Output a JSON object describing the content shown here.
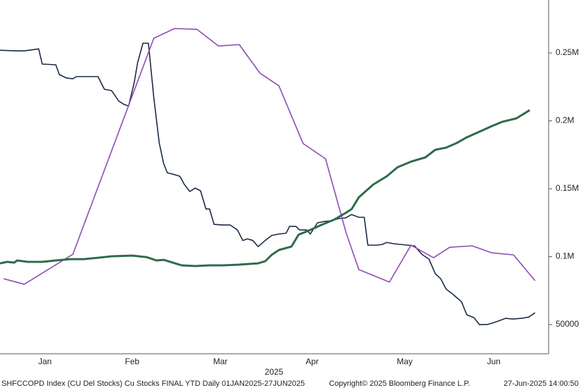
{
  "chart_data": {
    "type": "line",
    "x_axis_label": "2025",
    "footer": [
      "SHFCCOPD Index (CU Del Stocks) Cu Stocks FINAL YTD  Daily 01JAN2025-27JUN2025",
      "Copyright© 2025 Bloomberg Finance L.P.",
      "27-Jun-2025 14:00:50"
    ],
    "xlim": [
      0,
      6.1
    ],
    "xticks": [
      {
        "value": 0.5,
        "label": "Jan"
      },
      {
        "value": 1.47,
        "label": "Feb"
      },
      {
        "value": 2.45,
        "label": "Mar"
      },
      {
        "value": 3.47,
        "label": "Apr"
      },
      {
        "value": 4.5,
        "label": "May"
      },
      {
        "value": 5.49,
        "label": "Jun"
      }
    ],
    "ylim": [
      28500,
      289000
    ],
    "yticks": [
      50000,
      {
        "value": 100000,
        "label": "0.1M"
      },
      {
        "value": 150000,
        "label": "0.15M"
      },
      {
        "value": 200000,
        "label": "0.2M"
      },
      {
        "value": 250000,
        "label": "0.25M"
      }
    ],
    "series": [
      {
        "color": "#1b2a44",
        "width": 1.6,
        "x": [
          0,
          0.19,
          0.27,
          0.43,
          0.47,
          0.62,
          0.66,
          0.74,
          0.81,
          0.85,
          0.97,
          1.09,
          1.16,
          1.24,
          1.32,
          1.38,
          1.43,
          1.49,
          1.53,
          1.59,
          1.65,
          1.71,
          1.77,
          1.82,
          1.86,
          1.92,
          2.0,
          2.05,
          2.11,
          2.17,
          2.23,
          2.29,
          2.33,
          2.38,
          2.48,
          2.56,
          2.64,
          2.7,
          2.75,
          2.81,
          2.87,
          2.95,
          3.02,
          3.1,
          3.18,
          3.22,
          3.29,
          3.33,
          3.41,
          3.45,
          3.53,
          3.6,
          3.68,
          3.76,
          3.84,
          3.91,
          3.99,
          4.05,
          4.09,
          4.19,
          4.25,
          4.3,
          4.38,
          4.53,
          4.61,
          4.69,
          4.77,
          4.84,
          4.9,
          4.96,
          5.04,
          5.13,
          5.19,
          5.27,
          5.33,
          5.41,
          5.47,
          5.54,
          5.62,
          5.7,
          5.8,
          5.88,
          5.95
        ],
        "values": [
          252000,
          251500,
          251500,
          253000,
          241800,
          241300,
          234100,
          231500,
          231000,
          232600,
          232600,
          232600,
          223300,
          222300,
          214600,
          212100,
          211000,
          227400,
          242800,
          257200,
          257200,
          217200,
          183800,
          168500,
          161800,
          160800,
          159200,
          153100,
          148000,
          150500,
          148500,
          135100,
          135100,
          123800,
          123300,
          123300,
          119700,
          112000,
          113100,
          112000,
          107400,
          112000,
          115600,
          116700,
          117200,
          122300,
          122300,
          119700,
          119700,
          116700,
          124900,
          125900,
          126400,
          128000,
          128500,
          131000,
          129000,
          129000,
          108500,
          108500,
          109000,
          110500,
          109500,
          108500,
          107900,
          101800,
          98200,
          87400,
          83800,
          76200,
          72100,
          66900,
          57200,
          55100,
          50000,
          50000,
          51000,
          52600,
          54600,
          54100,
          54600,
          55600,
          58700
        ]
      },
      {
        "color": "#8e4bb4",
        "width": 1.6,
        "x": [
          0.04,
          0.27,
          0.81,
          1.71,
          1.94,
          2.19,
          2.43,
          2.66,
          2.89,
          3.1,
          3.37,
          3.62,
          3.85,
          3.99,
          4.33,
          4.57,
          4.82,
          5.0,
          5.25,
          5.47,
          5.71,
          5.95
        ],
        "values": [
          83800,
          79700,
          101800,
          260800,
          268000,
          267400,
          255100,
          256200,
          235100,
          225900,
          183300,
          172100,
          117200,
          90500,
          81300,
          108500,
          99200,
          106900,
          108000,
          102800,
          101300,
          82300
        ]
      },
      {
        "color": "#2e6b4a",
        "width": 3,
        "x": [
          0,
          0.08,
          0.16,
          0.19,
          0.31,
          0.47,
          0.62,
          0.78,
          0.93,
          1.09,
          1.24,
          1.47,
          1.63,
          1.74,
          1.82,
          2.02,
          2.17,
          2.33,
          2.48,
          2.64,
          2.87,
          2.95,
          3.02,
          3.1,
          3.24,
          3.32,
          3.45,
          3.57,
          3.72,
          3.84,
          3.91,
          3.99,
          4.15,
          4.3,
          4.42,
          4.57,
          4.73,
          4.84,
          4.96,
          5.08,
          5.19,
          5.35,
          5.47,
          5.58,
          5.74,
          5.89
        ],
        "values": [
          95100,
          96200,
          95600,
          97200,
          96200,
          96200,
          97200,
          98200,
          98200,
          99200,
          100300,
          100800,
          99700,
          97200,
          97700,
          93600,
          93100,
          93600,
          93600,
          94100,
          95100,
          96700,
          101300,
          104900,
          107400,
          116200,
          119700,
          123300,
          127400,
          132100,
          135100,
          143800,
          153100,
          159200,
          165900,
          170000,
          173100,
          178700,
          180300,
          183800,
          187900,
          192600,
          196200,
          199200,
          201800,
          207900
        ]
      }
    ]
  }
}
